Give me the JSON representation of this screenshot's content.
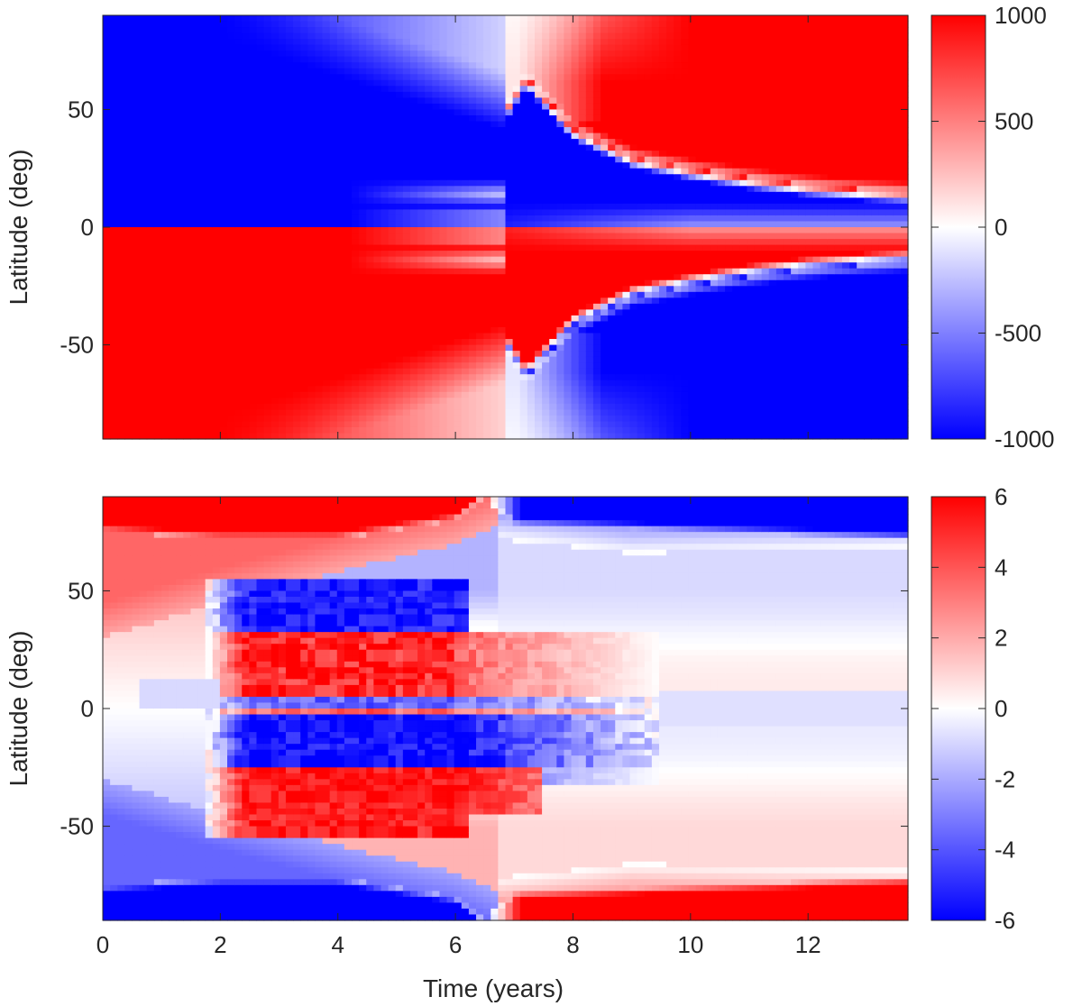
{
  "chart_data": [
    {
      "type": "heatmap",
      "panel": "top",
      "title": "",
      "xlabel": "",
      "ylabel": "Latitude (deg)",
      "xlim": [
        0,
        13.7
      ],
      "ylim": [
        -90,
        90
      ],
      "xticks": [
        0,
        2,
        4,
        6,
        8,
        10,
        12
      ],
      "xtick_labels_shown": false,
      "yticks": [
        -50,
        0,
        50
      ],
      "ytick_labels": [
        "-50",
        "0",
        "50"
      ],
      "colorbar": {
        "clim": [
          -1000,
          1000
        ],
        "ticks": [
          -1000,
          -500,
          0,
          500,
          1000
        ],
        "tick_labels": [
          "-1000",
          "-500",
          "0",
          "500",
          "1000"
        ],
        "colormap": [
          "#0000ff",
          "#ffffff",
          "#ff0000"
        ]
      },
      "pattern": {
        "description_values": "antisymmetric about equator; north negative / south positive until polarity reversal near 7 yr at 50 deg, reversal front migrating equatorward to ~12 deg by 13.7 yr",
        "reversal_front_x_years": [
          6.9,
          7.2,
          8.0,
          9.0,
          10.0,
          11.0,
          12.0,
          13.0,
          13.7
        ],
        "reversal_front_lat_deg": [
          50,
          62,
          40,
          28,
          23,
          19,
          16,
          14,
          13
        ],
        "high_lat_boundary_x_years": [
          7.0,
          7.5,
          8.2,
          8.8
        ],
        "high_lat_boundary_lat_deg": [
          50,
          65,
          80,
          90
        ]
      }
    },
    {
      "type": "heatmap",
      "panel": "bottom",
      "title": "",
      "xlabel": "Time (years)",
      "ylabel": "Latitude (deg)",
      "xlim": [
        0,
        13.7
      ],
      "ylim": [
        -90,
        90
      ],
      "xticks": [
        0,
        2,
        4,
        6,
        8,
        10,
        12
      ],
      "xtick_labels": [
        "0",
        "2",
        "4",
        "6",
        "8",
        "10",
        "12"
      ],
      "yticks": [
        -50,
        0,
        50
      ],
      "ytick_labels": [
        "-50",
        "0",
        "50"
      ],
      "colorbar": {
        "clim": [
          -6,
          6
        ],
        "ticks": [
          -6,
          -4,
          -2,
          0,
          2,
          4,
          6
        ],
        "tick_labels": [
          "-6",
          "-4",
          "-2",
          "0",
          "2",
          "4",
          "6"
        ],
        "colormap": [
          "#0000ff",
          "#ffffff",
          "#ff0000"
        ]
      },
      "pattern": {
        "description_values": "polar caps: north positive before ~6.7 yr then negative; south negative before ~6.7 yr then positive; mid-latitude bands: north positive ~5-35 deg, south negative ~-5 to -25 deg, active ~1.8-9 yr",
        "north_cap_edge_x_years": [
          0,
          2,
          4,
          6,
          6.5,
          7,
          13.7
        ],
        "north_cap_edge_lat_deg": [
          75,
          72,
          72,
          80,
          90,
          78,
          72
        ]
      }
    }
  ]
}
